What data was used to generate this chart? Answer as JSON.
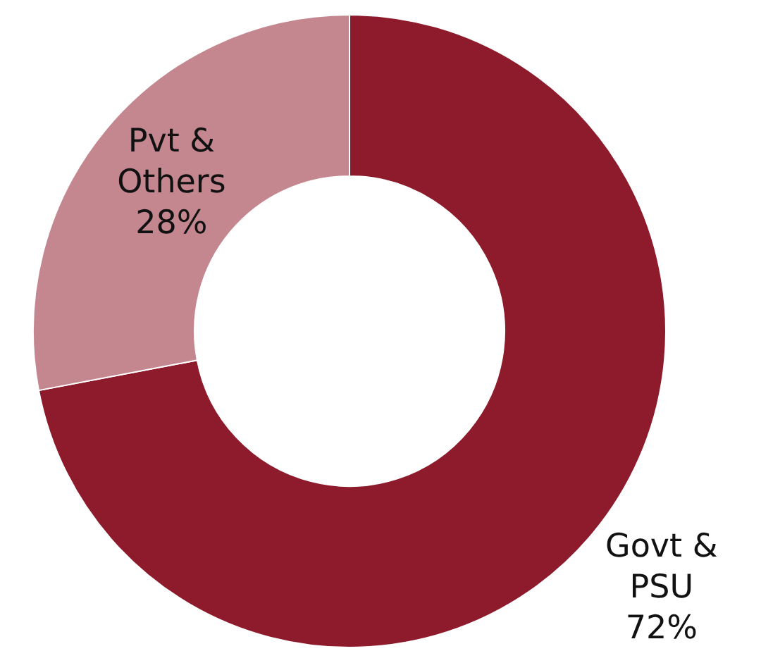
{
  "chart_data": {
    "type": "donut",
    "categories": [
      "Govt & PSU",
      "Pvt & Others"
    ],
    "values": [
      72,
      28
    ],
    "colors": [
      "#8e1b2c",
      "#c4878f"
    ],
    "value_labels": [
      "72%",
      "28%"
    ],
    "legend": false
  }
}
